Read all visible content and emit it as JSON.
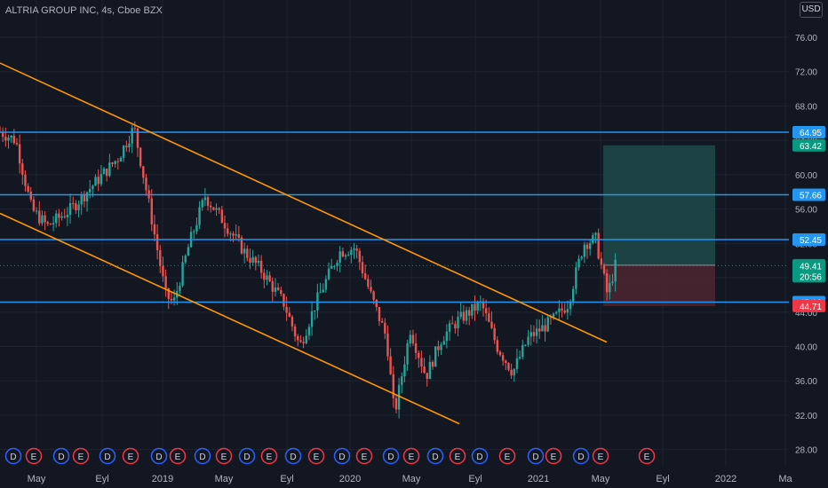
{
  "header": {
    "title": "ALTRIA GROUP INC, 4s, Cboe BZX",
    "currency": "USD"
  },
  "colors": {
    "background": "#131722",
    "grid": "#1f2330",
    "axis_text": "#b2b5be",
    "up_candle": "#26a69a",
    "down_candle": "#ef5350",
    "level_line": "#2196f3",
    "trend_line": "#ff9800",
    "target_zone": "#1e4a4a",
    "stop_zone": "#4a2530",
    "dividend_marker": "#2962ff",
    "earnings_marker": "#f23645"
  },
  "chart_data": {
    "type": "candlestick",
    "y_axis": {
      "ticks": [
        28.0,
        32.0,
        36.0,
        40.0,
        44.0,
        48.0,
        52.0,
        56.0,
        60.0,
        64.0,
        68.0,
        72.0,
        76.0
      ]
    },
    "x_axis": {
      "labels": [
        "May",
        "Eyl",
        "2019",
        "May",
        "Eyl",
        "2020",
        "May",
        "Eyl",
        "2021",
        "May",
        "Eyl",
        "2022",
        "Ma"
      ]
    },
    "price_path": [
      {
        "t": 0,
        "p": 65.0
      },
      {
        "t": 0.02,
        "p": 64.0
      },
      {
        "t": 0.04,
        "p": 56.0
      },
      {
        "t": 0.06,
        "p": 54.0
      },
      {
        "t": 0.09,
        "p": 56.0
      },
      {
        "t": 0.12,
        "p": 59.0
      },
      {
        "t": 0.15,
        "p": 62.0
      },
      {
        "t": 0.17,
        "p": 65.5
      },
      {
        "t": 0.19,
        "p": 56.0
      },
      {
        "t": 0.21,
        "p": 46.0
      },
      {
        "t": 0.22,
        "p": 45.0
      },
      {
        "t": 0.24,
        "p": 52.0
      },
      {
        "t": 0.26,
        "p": 57.5
      },
      {
        "t": 0.28,
        "p": 55.0
      },
      {
        "t": 0.31,
        "p": 51.0
      },
      {
        "t": 0.33,
        "p": 49.0
      },
      {
        "t": 0.36,
        "p": 45.0
      },
      {
        "t": 0.38,
        "p": 40.0
      },
      {
        "t": 0.4,
        "p": 45.0
      },
      {
        "t": 0.43,
        "p": 51.0
      },
      {
        "t": 0.45,
        "p": 51.5
      },
      {
        "t": 0.47,
        "p": 46.0
      },
      {
        "t": 0.49,
        "p": 41.0
      },
      {
        "t": 0.5,
        "p": 32.0
      },
      {
        "t": 0.52,
        "p": 42.0
      },
      {
        "t": 0.54,
        "p": 36.5
      },
      {
        "t": 0.56,
        "p": 41.0
      },
      {
        "t": 0.58,
        "p": 43.0
      },
      {
        "t": 0.61,
        "p": 45.0
      },
      {
        "t": 0.63,
        "p": 40.0
      },
      {
        "t": 0.65,
        "p": 37.0
      },
      {
        "t": 0.67,
        "p": 41.0
      },
      {
        "t": 0.7,
        "p": 43.0
      },
      {
        "t": 0.72,
        "p": 45.0
      },
      {
        "t": 0.74,
        "p": 52.0
      },
      {
        "t": 0.755,
        "p": 52.5
      },
      {
        "t": 0.77,
        "p": 46.0
      },
      {
        "t": 0.78,
        "p": 49.41
      }
    ],
    "horizontal_levels": [
      64.95,
      57.66,
      52.45,
      45.16
    ],
    "channel_lines": [
      {
        "start": {
          "x": "2018-Mar",
          "y": 73.0
        },
        "end": {
          "x": "2021-Apr",
          "y": 40.5
        }
      },
      {
        "start": {
          "x": "2018-Mar",
          "y": 55.5
        },
        "end": {
          "x": "2020-Dec",
          "y": 31.0
        }
      }
    ],
    "position_tool": {
      "entry": 49.46,
      "target": 63.42,
      "stop": 44.71,
      "target_label": "63.42",
      "stop_label": "44.71",
      "entry_label": "49.46"
    },
    "price_labels": [
      {
        "value": 64.95,
        "label": "64.95",
        "kind": "level"
      },
      {
        "value": 63.42,
        "label": "63.42",
        "kind": "target"
      },
      {
        "value": 57.66,
        "label": "57.66",
        "kind": "level"
      },
      {
        "value": 52.45,
        "label": "52.45",
        "kind": "level"
      },
      {
        "value": 49.46,
        "label": "49.46",
        "kind": "entry"
      },
      {
        "value": 49.41,
        "label": "49.41",
        "kind": "last",
        "countdown": "20:56"
      },
      {
        "value": 45.16,
        "label": "45.16",
        "kind": "level"
      },
      {
        "value": 44.71,
        "label": "44.71",
        "kind": "stop"
      }
    ],
    "event_markers": [
      "D",
      "E",
      "D",
      "E",
      "D",
      "E",
      "D",
      "E",
      "D",
      "E",
      "D",
      "E",
      "D",
      "E",
      "D",
      "E",
      "D",
      "E",
      "D",
      "E",
      "D",
      "E",
      "D",
      "E",
      "D",
      "E",
      "E"
    ]
  }
}
